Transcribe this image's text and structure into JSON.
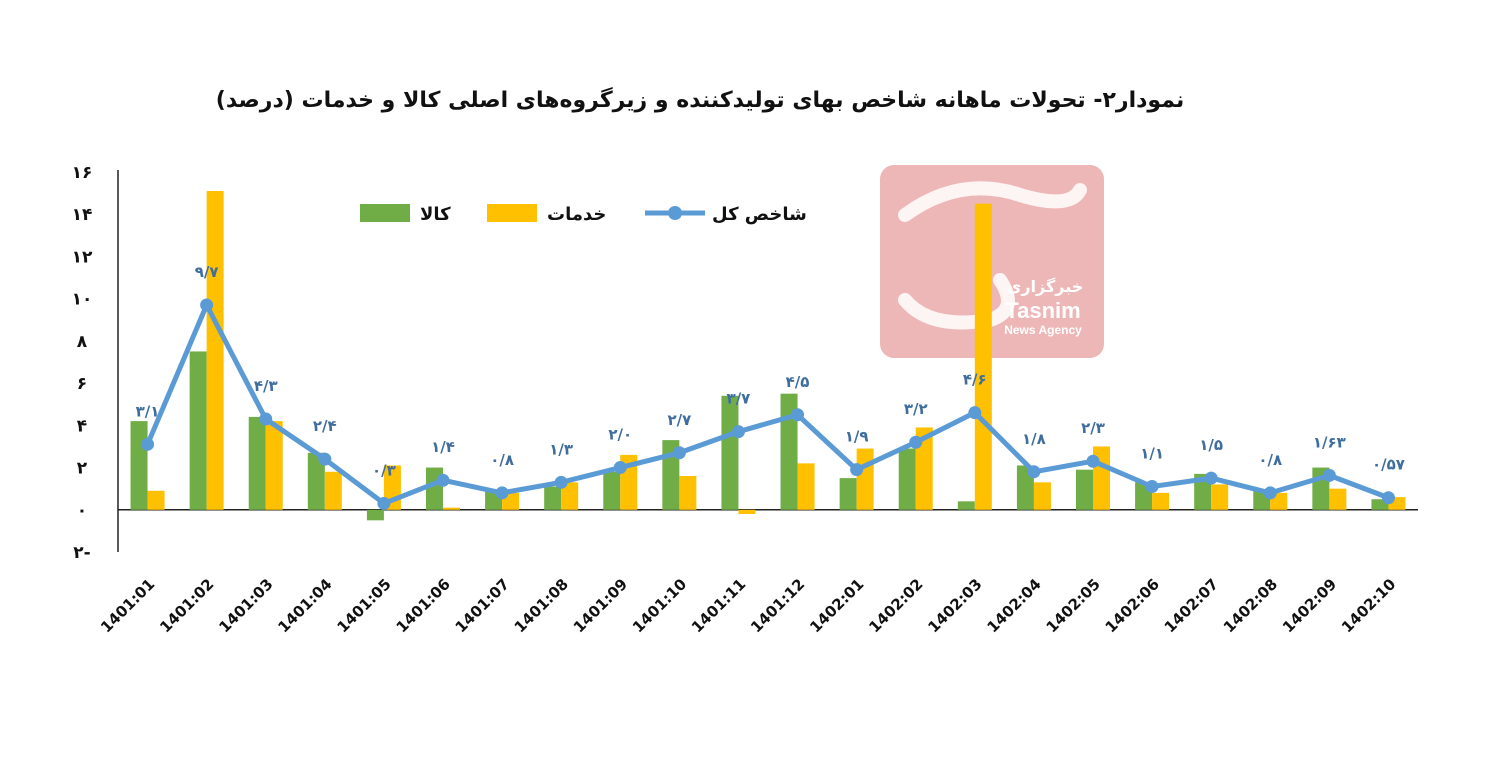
{
  "title": "نمودار۲- تحولات ماهانه شاخص بهای تولیدکننده  و زیرگروه‌های اصلی کالا و خدمات (درصد)",
  "watermark": {
    "brand_fa": "خبرگزاری",
    "brand_en": "Tasnim",
    "sub_en": "News Agency"
  },
  "colors": {
    "goods": "#70ad47",
    "services": "#ffc000",
    "total": "#5b9bd5",
    "watermark": "#e07b7b"
  },
  "chart_data": {
    "type": "bar",
    "categories": [
      "1401:01",
      "1401:02",
      "1401:03",
      "1401:04",
      "1401:05",
      "1401:06",
      "1401:07",
      "1401:08",
      "1401:09",
      "1401:10",
      "1401:11",
      "1401:12",
      "1402:01",
      "1402:02",
      "1402:03",
      "1402:04",
      "1402:05",
      "1402:06",
      "1402:07",
      "1402:08",
      "1402:09",
      "1402:10"
    ],
    "ylim": [
      -2,
      16
    ],
    "yticks": [
      -2,
      0,
      2,
      4,
      6,
      8,
      10,
      12,
      14,
      16
    ],
    "ytick_labels": [
      "۲-",
      "۰",
      "۲",
      "۴",
      "۶",
      "۸",
      "۱۰",
      "۱۲",
      "۱۴",
      "۱۶"
    ],
    "grid": false,
    "legend_position": "top",
    "series": [
      {
        "name": "کالا",
        "type": "bar",
        "values": [
          4.2,
          7.5,
          4.4,
          2.7,
          -0.5,
          2.0,
          0.9,
          1.1,
          1.8,
          3.3,
          5.4,
          5.5,
          1.5,
          2.9,
          0.4,
          2.1,
          1.9,
          1.3,
          1.7,
          0.9,
          2.0,
          0.5
        ]
      },
      {
        "name": "خدمات",
        "type": "bar",
        "values": [
          0.9,
          15.1,
          4.2,
          1.8,
          2.1,
          0.1,
          0.8,
          1.3,
          2.6,
          1.6,
          -0.2,
          2.2,
          2.9,
          3.9,
          14.5,
          1.3,
          3.0,
          0.8,
          1.2,
          0.8,
          1.0,
          0.6
        ]
      },
      {
        "name": "شاخص کل",
        "type": "line",
        "values": [
          3.1,
          9.7,
          4.3,
          2.4,
          0.3,
          1.4,
          0.8,
          1.3,
          2.0,
          2.7,
          3.7,
          4.5,
          1.9,
          3.2,
          4.6,
          1.8,
          2.3,
          1.1,
          1.5,
          0.8,
          1.63,
          0.57
        ],
        "labels": [
          "۳/۱",
          "۹/۷",
          "۴/۳",
          "۲/۴",
          "۰/۳",
          "۱/۴",
          "۰/۸",
          "۱/۳",
          "۲/۰",
          "۲/۷",
          "۳/۷",
          "۴/۵",
          "۱/۹",
          "۳/۲",
          "۴/۶",
          "۱/۸",
          "۲/۳",
          "۱/۱",
          "۱/۵",
          "۰/۸",
          "۱/۶۳",
          "۰/۵۷"
        ]
      }
    ]
  }
}
